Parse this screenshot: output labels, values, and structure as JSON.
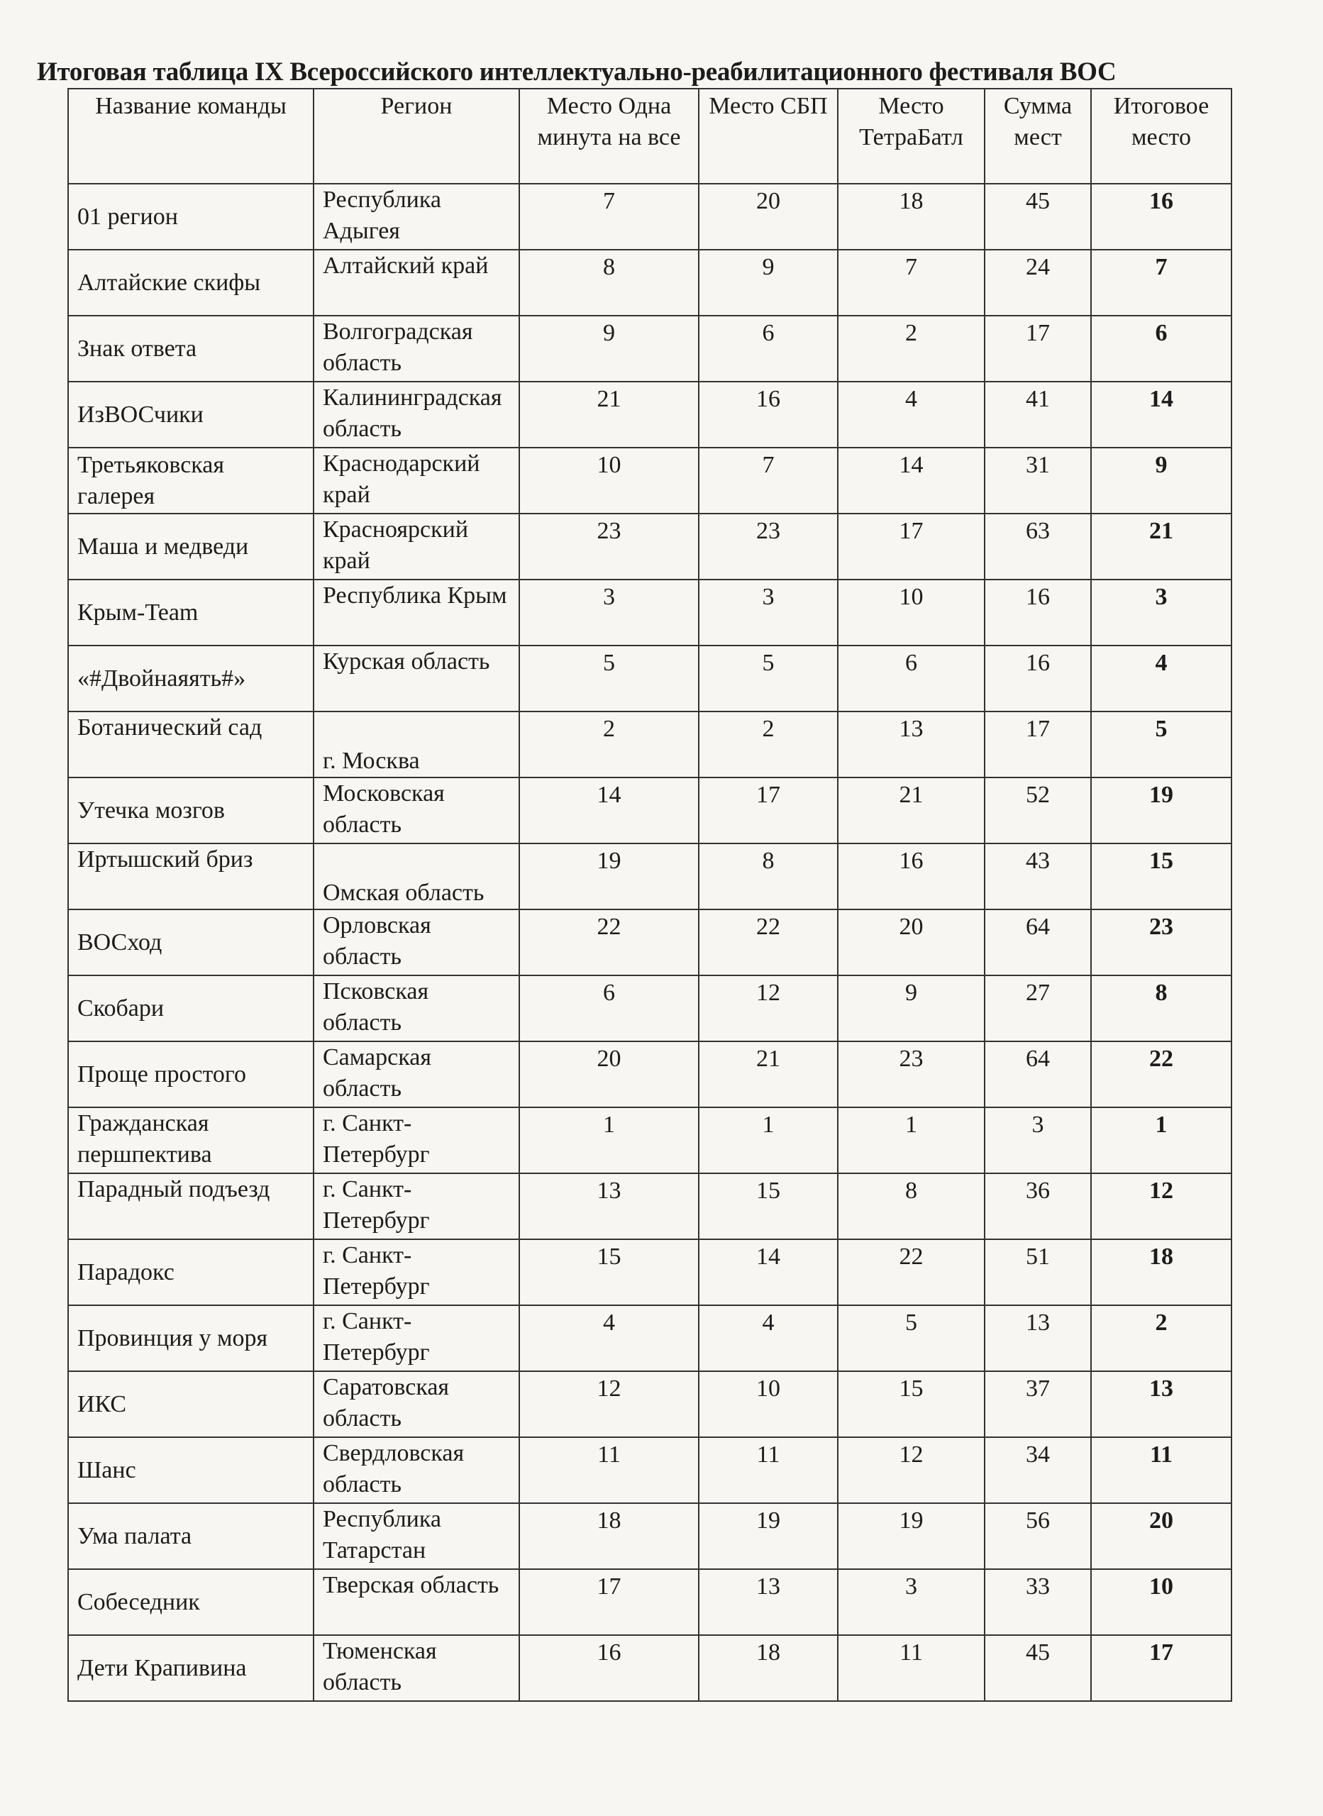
{
  "title": "Итоговая таблица IX Всероссийского интеллектуально-реабилитационного фестиваля ВОС",
  "columns": [
    "Название команды",
    "Регион",
    "Место Одна минута на все",
    "Место СБП",
    "Место ТетраБатл",
    "Сумма мест",
    "Итоговое место"
  ],
  "rows": [
    {
      "team": "01 регион",
      "region": "Республика Адыгея",
      "m1": "7",
      "sbp": "20",
      "tetra": "18",
      "sum": "45",
      "final": "16"
    },
    {
      "team": "Алтайские скифы",
      "region": "Алтайский край",
      "m1": "8",
      "sbp": "9",
      "tetra": "7",
      "sum": "24",
      "final": "7"
    },
    {
      "team": "Знак ответа",
      "region": "Волгоградская область",
      "m1": "9",
      "sbp": "6",
      "tetra": "2",
      "sum": "17",
      "final": "6"
    },
    {
      "team": "ИзВОСчики",
      "region": "Калининградская область",
      "m1": "21",
      "sbp": "16",
      "tetra": "4",
      "sum": "41",
      "final": "14"
    },
    {
      "team": "Третьяковская галерея",
      "region": "Краснодарский край",
      "m1": "10",
      "sbp": "7",
      "tetra": "14",
      "sum": "31",
      "final": "9"
    },
    {
      "team": "Маша и медведи",
      "region": "Красноярский край",
      "m1": "23",
      "sbp": "23",
      "tetra": "17",
      "sum": "63",
      "final": "21"
    },
    {
      "team": "Крым-Team",
      "region": "Республика Крым",
      "m1": "3",
      "sbp": "3",
      "tetra": "10",
      "sum": "16",
      "final": "3"
    },
    {
      "team": "«#Двойнаяять#»",
      "region": "Курская область",
      "m1": "5",
      "sbp": "5",
      "tetra": "6",
      "sum": "16",
      "final": "4"
    },
    {
      "team": "Ботанический сад",
      "region": "г. Москва",
      "m1": "2",
      "sbp": "2",
      "tetra": "13",
      "sum": "17",
      "final": "5",
      "layout": "split"
    },
    {
      "team": "Утечка мозгов",
      "region": "Московская область",
      "m1": "14",
      "sbp": "17",
      "tetra": "21",
      "sum": "52",
      "final": "19"
    },
    {
      "team": "Иртышский бриз",
      "region": "Омская область",
      "m1": "19",
      "sbp": "8",
      "tetra": "16",
      "sum": "43",
      "final": "15",
      "layout": "split"
    },
    {
      "team": "ВОСход",
      "region": "Орловская область",
      "m1": "22",
      "sbp": "22",
      "tetra": "20",
      "sum": "64",
      "final": "23"
    },
    {
      "team": "Скобари",
      "region": "Псковская область",
      "m1": "6",
      "sbp": "12",
      "tetra": "9",
      "sum": "27",
      "final": "8"
    },
    {
      "team": "Проще простого",
      "region": "Самарская область",
      "m1": "20",
      "sbp": "21",
      "tetra": "23",
      "sum": "64",
      "final": "22"
    },
    {
      "team": "Гражданская першпектива",
      "region": "г. Санкт-Петербург",
      "m1": "1",
      "sbp": "1",
      "tetra": "1",
      "sum": "3",
      "final": "1",
      "layout": "top"
    },
    {
      "team": "Парадный подъезд",
      "region": "г. Санкт-Петербург",
      "m1": "13",
      "sbp": "15",
      "tetra": "8",
      "sum": "36",
      "final": "12",
      "layout": "top"
    },
    {
      "team": "Парадокс",
      "region": "г. Санкт-Петербург",
      "m1": "15",
      "sbp": "14",
      "tetra": "22",
      "sum": "51",
      "final": "18"
    },
    {
      "team": "Провинция у моря",
      "region": "г. Санкт-Петербург",
      "m1": "4",
      "sbp": "4",
      "tetra": "5",
      "sum": "13",
      "final": "2"
    },
    {
      "team": "ИКС",
      "region": "Саратовская область",
      "m1": "12",
      "sbp": "10",
      "tetra": "15",
      "sum": "37",
      "final": "13"
    },
    {
      "team": "Шанс",
      "region": "Свердловская область",
      "m1": "11",
      "sbp": "11",
      "tetra": "12",
      "sum": "34",
      "final": "11"
    },
    {
      "team": "Ума палата",
      "region": "Республика Татарстан",
      "m1": "18",
      "sbp": "19",
      "tetra": "19",
      "sum": "56",
      "final": "20"
    },
    {
      "team": "Собеседник",
      "region": "Тверская область",
      "m1": "17",
      "sbp": "13",
      "tetra": "3",
      "sum": "33",
      "final": "10"
    },
    {
      "team": "Дети Крапивина",
      "region": "Тюменская область",
      "m1": "16",
      "sbp": "18",
      "tetra": "11",
      "sum": "45",
      "final": "17"
    }
  ]
}
